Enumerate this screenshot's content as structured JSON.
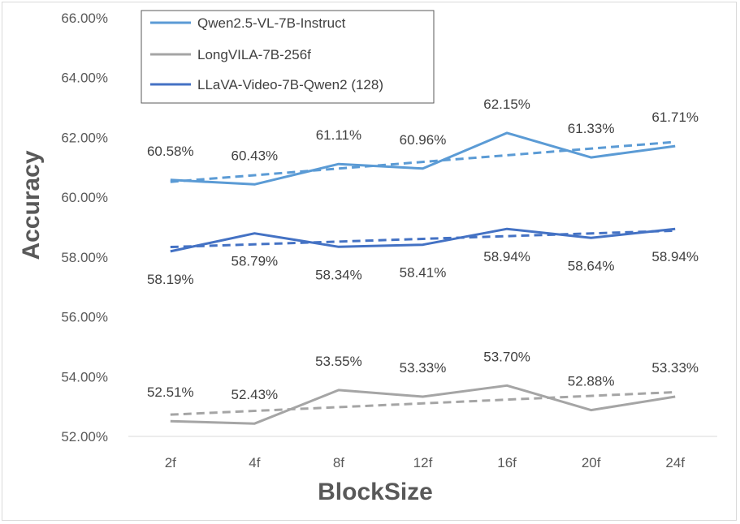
{
  "chart_data": {
    "type": "line",
    "title": "",
    "xlabel": "BlockSize",
    "ylabel": "Accuracy",
    "categories": [
      "2f",
      "4f",
      "8f",
      "12f",
      "16f",
      "20f",
      "24f"
    ],
    "ylim": [
      52,
      66
    ],
    "yticks": [
      52,
      54,
      56,
      58,
      60,
      62,
      64,
      66
    ],
    "ytick_labels": [
      "52.00%",
      "54.00%",
      "56.00%",
      "58.00%",
      "60.00%",
      "62.00%",
      "64.00%",
      "66.00%"
    ],
    "grid": false,
    "legend_position": "top-left",
    "trendlines": "linear, dashed, one per series",
    "series": [
      {
        "name": "Qwen2.5-VL-7B-Instruct",
        "color": "#5b9bd5",
        "values": [
          60.58,
          60.43,
          61.11,
          60.96,
          62.15,
          61.33,
          61.71
        ],
        "labels": [
          "60.58%",
          "60.43%",
          "61.11%",
          "60.96%",
          "62.15%",
          "61.33%",
          "61.71%"
        ],
        "label_side": "above"
      },
      {
        "name": "LongVILA-7B-256f",
        "color": "#a5a5a5",
        "values": [
          52.51,
          52.43,
          53.55,
          53.33,
          53.7,
          52.88,
          53.33
        ],
        "labels": [
          "52.51%",
          "52.43%",
          "53.55%",
          "53.33%",
          "53.70%",
          "52.88%",
          "53.33%"
        ],
        "label_side": "above"
      },
      {
        "name": "LLaVA-Video-7B-Qwen2 (128)",
        "color": "#4472c4",
        "values": [
          58.19,
          58.79,
          58.34,
          58.41,
          58.94,
          58.64,
          58.94
        ],
        "labels": [
          "58.19%",
          "58.79%",
          "58.34%",
          "58.41%",
          "58.94%",
          "58.64%",
          "58.94%"
        ],
        "label_side": "below"
      }
    ]
  }
}
